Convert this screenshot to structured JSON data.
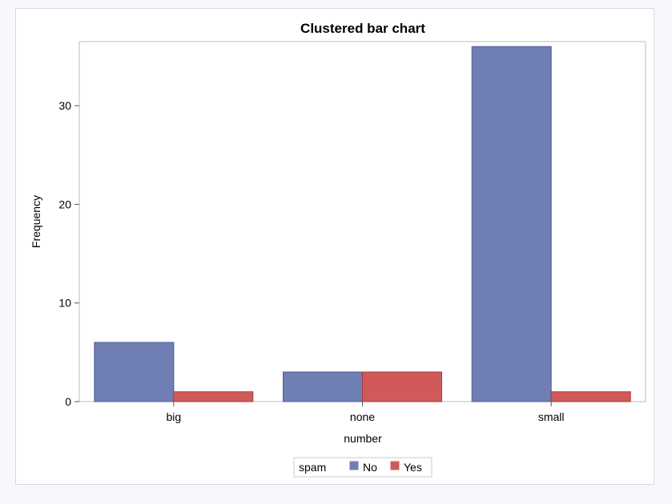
{
  "chart_data": {
    "type": "bar",
    "title": "Clustered bar chart",
    "xlabel": "number",
    "ylabel": "Frequency",
    "categories": [
      "big",
      "none",
      "small"
    ],
    "ylim": [
      0,
      36.5
    ],
    "yticks": [
      0,
      10,
      20,
      30
    ],
    "grid": false,
    "legend": {
      "title": "spam",
      "placement": "bottom"
    },
    "series": [
      {
        "name": "No",
        "values": [
          6,
          3,
          36
        ],
        "color": "#6f7eb3"
      },
      {
        "name": "Yes",
        "values": [
          1,
          3,
          1
        ],
        "color": "#d05a5a"
      }
    ]
  }
}
